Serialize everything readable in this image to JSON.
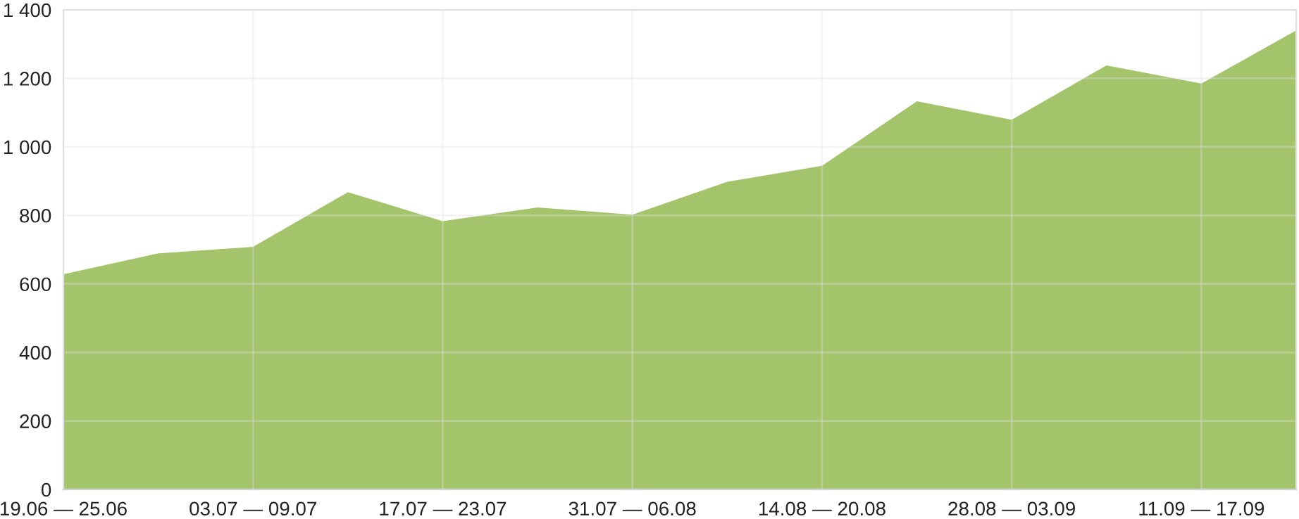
{
  "chart_data": {
    "type": "area",
    "categories": [
      "19.06 — 25.06",
      null,
      "03.07 — 09.07",
      null,
      "17.07 — 23.07",
      null,
      "31.07 — 06.08",
      null,
      "14.08 — 20.08",
      null,
      "28.08 — 03.09",
      null,
      "11.09 — 17.09",
      null
    ],
    "series": [
      {
        "color": "#a4c46c",
        "values": [
          628,
          689,
          708,
          868,
          783,
          823,
          802,
          898,
          945,
          1133,
          1079,
          1238,
          1185,
          1340
        ]
      }
    ],
    "ylim": [
      0,
      1400
    ],
    "yticks": [
      0,
      200,
      400,
      600,
      800,
      {
        "value": 1000,
        "label": "1 000"
      },
      {
        "value": 1200,
        "label": "1 200"
      },
      {
        "value": 1400,
        "label": "1 400"
      }
    ],
    "grid": true
  }
}
